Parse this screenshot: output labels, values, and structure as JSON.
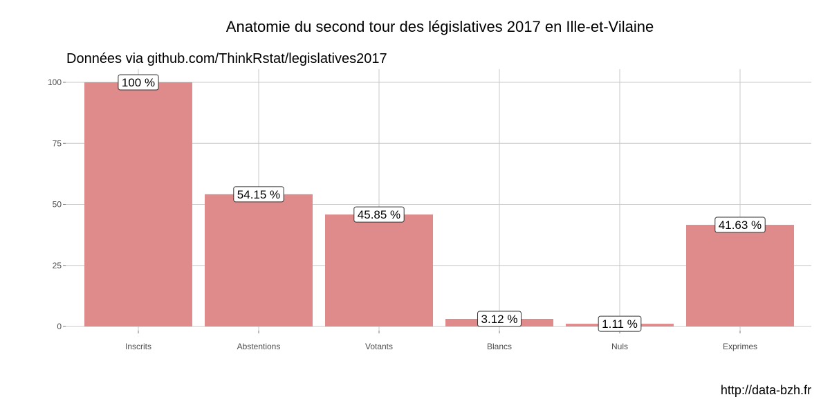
{
  "chart_data": {
    "type": "bar",
    "title": "Anatomie du second tour des législatives 2017 en Ille-et-Vilaine",
    "subtitle": "Données via github.com/ThinkRstat/legislatives2017",
    "caption": "http://data-bzh.fr",
    "xlabel": "",
    "ylabel": "",
    "categories": [
      "Inscrits",
      "Abstentions",
      "Votants",
      "Blancs",
      "Nuls",
      "Exprimes"
    ],
    "values": [
      100,
      54.15,
      45.85,
      3.12,
      1.11,
      41.63
    ],
    "data_labels": [
      "100 %",
      "54.15 %",
      "45.85 %",
      "3.12 %",
      "1.11 %",
      "41.63 %"
    ],
    "yticks": [
      0,
      25,
      50,
      75,
      100
    ],
    "ytick_labels": [
      "0",
      "25",
      "50",
      "75",
      "100"
    ],
    "ylim": [
      0,
      105
    ],
    "grid": true,
    "legend": "none",
    "bar_color": "#e08b8b",
    "grid_color": "#c8c8c8"
  }
}
